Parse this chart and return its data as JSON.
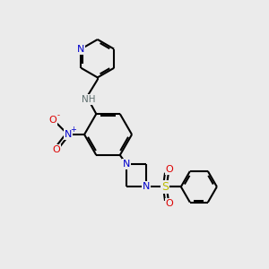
{
  "bg_color": "#ebebeb",
  "bond_color": "#000000",
  "atom_colors": {
    "N": "#0000cc",
    "O": "#dd0000",
    "S": "#bbbb00",
    "H": "#607070"
  },
  "figsize": [
    3.0,
    3.0
  ],
  "dpi": 100
}
